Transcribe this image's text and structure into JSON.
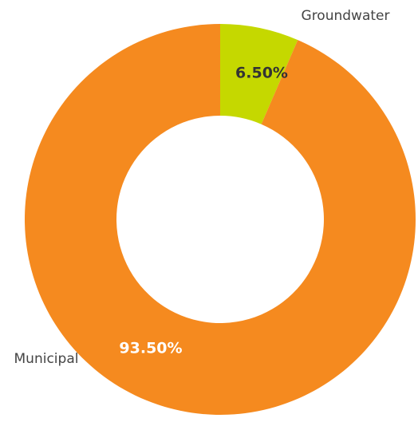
{
  "chart_data": {
    "type": "pie",
    "categories": [
      "Groundwater",
      "Municipal"
    ],
    "values": [
      6.5,
      93.5
    ],
    "value_labels": [
      "6.50%",
      "93.50%"
    ],
    "colors": [
      "#c5d800",
      "#f58a1f"
    ],
    "value_label_colors": [
      "#333333",
      "#ffffff"
    ]
  }
}
